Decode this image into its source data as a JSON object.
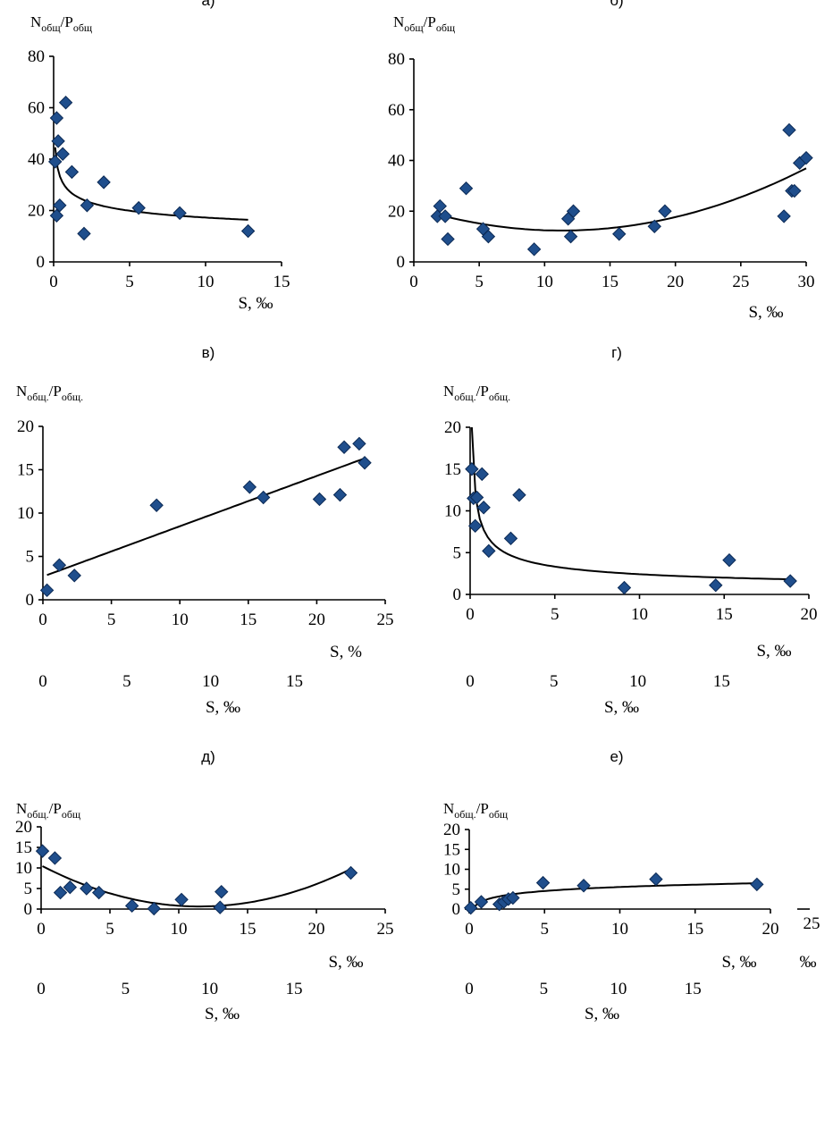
{
  "chart_data": [
    {
      "type": "scatter",
      "panel_label": "а)",
      "ylabel_main": "N",
      "ylabel_sub1": "общ",
      "ylabel_sep": "/P",
      "ylabel_sub2": "общ",
      "xlabel": "S, ‰",
      "xlim": [
        0,
        15
      ],
      "ylim": [
        0,
        80
      ],
      "xticks": [
        "0",
        "5",
        "10",
        "15"
      ],
      "yticks": [
        "0",
        "20",
        "40",
        "60",
        "80"
      ],
      "trend": "power",
      "x": [
        0.1,
        0.2,
        0.2,
        0.3,
        0.4,
        0.6,
        0.8,
        1.2,
        2.0,
        2.2,
        3.3,
        5.6,
        8.3,
        12.8
      ],
      "y": [
        39,
        18,
        56,
        47,
        22,
        42,
        62,
        35,
        11,
        22,
        31,
        21,
        19,
        12
      ]
    },
    {
      "type": "scatter",
      "panel_label": "б)",
      "ylabel_main": "N",
      "ylabel_sub1": "общ",
      "ylabel_sep": "/P",
      "ylabel_sub2": "общ",
      "xlabel": "S, ‰",
      "xlim": [
        0,
        30
      ],
      "ylim": [
        0,
        80
      ],
      "xticks": [
        "0",
        "5",
        "10",
        "15",
        "20",
        "25",
        "30"
      ],
      "yticks": [
        "0",
        "20",
        "40",
        "60",
        "80"
      ],
      "trend": "quadratic",
      "x": [
        1.8,
        2.0,
        2.4,
        2.6,
        4.0,
        5.3,
        5.7,
        9.2,
        11.8,
        12.0,
        12.2,
        15.7,
        18.4,
        19.2,
        28.3,
        28.7,
        28.9,
        29.1,
        29.5,
        30.0
      ],
      "y": [
        18,
        22,
        18,
        9,
        29,
        13,
        10,
        5,
        17,
        10,
        20,
        11,
        14,
        20,
        18,
        52,
        28,
        28,
        39,
        41
      ]
    },
    {
      "type": "scatter",
      "panel_label": "в)",
      "ylabel_main": "N",
      "ylabel_sub1": "общ.",
      "ylabel_sep": "/P",
      "ylabel_sub2": "общ.",
      "xlabel": "S, %",
      "xlim": [
        0,
        25
      ],
      "ylim": [
        0,
        20
      ],
      "xticks": [
        "0",
        "5",
        "10",
        "15",
        "20",
        "25"
      ],
      "yticks": [
        "0",
        "5",
        "10",
        "15",
        "20"
      ],
      "xlabel2": "S, ‰",
      "xticks2": [
        "0",
        "5",
        "10",
        "15"
      ],
      "trend": "linear",
      "x": [
        0.3,
        1.2,
        2.3,
        8.3,
        15.1,
        16.1,
        20.2,
        21.7,
        22.0,
        23.1,
        23.5
      ],
      "y": [
        1.1,
        4.0,
        2.8,
        10.9,
        13.0,
        11.8,
        11.6,
        12.1,
        17.6,
        18.0,
        15.8
      ]
    },
    {
      "type": "scatter",
      "panel_label": "г)",
      "ylabel_main": "N",
      "ylabel_sub1": "общ.",
      "ylabel_sep": "/P",
      "ylabel_sub2": "общ.",
      "xlabel": "S, ‰",
      "xlim": [
        0,
        20
      ],
      "ylim": [
        0,
        20
      ],
      "xticks": [
        "0",
        "5",
        "10",
        "15",
        "20"
      ],
      "yticks": [
        "0",
        "5",
        "10",
        "15",
        "20"
      ],
      "xlabel2": "S, ‰",
      "xticks2": [
        "0",
        "5",
        "10",
        "15"
      ],
      "trend": "power",
      "x": [
        0.1,
        0.2,
        0.3,
        0.4,
        0.7,
        0.8,
        1.1,
        2.4,
        2.9,
        9.1,
        14.5,
        15.3,
        18.9
      ],
      "y": [
        15.0,
        11.5,
        8.2,
        11.6,
        14.4,
        10.4,
        5.2,
        6.7,
        11.9,
        0.8,
        1.1,
        4.1,
        1.6
      ]
    },
    {
      "type": "scatter",
      "panel_label": "д)",
      "ylabel_main": "N",
      "ylabel_sub1": "общ.",
      "ylabel_sep": "/P",
      "ylabel_sub2": "общ",
      "xlabel": "S, ‰",
      "xlim": [
        0,
        25
      ],
      "ylim": [
        0,
        20
      ],
      "xticks": [
        "0",
        "5",
        "10",
        "15",
        "20",
        "25"
      ],
      "yticks": [
        "0",
        "5",
        "10",
        "15",
        "20"
      ],
      "xlabel2": "S, ‰",
      "xticks2": [
        "0",
        "5",
        "10",
        "15"
      ],
      "trend": "quadratic",
      "x": [
        0.1,
        1.0,
        1.4,
        2.1,
        3.3,
        4.2,
        6.6,
        8.2,
        10.2,
        13.0,
        13.1,
        22.5
      ],
      "y": [
        14.1,
        12.4,
        4.0,
        5.3,
        5.0,
        4.0,
        0.8,
        0.1,
        2.3,
        0.4,
        4.2,
        8.8
      ]
    },
    {
      "type": "scatter",
      "panel_label": "е)",
      "ylabel_main": "N",
      "ylabel_sub1": "общ.",
      "ylabel_sep": "/P",
      "ylabel_sub2": "общ",
      "xlabel": "S, ‰",
      "xlim": [
        0,
        20
      ],
      "ylim": [
        0,
        20
      ],
      "xticks": [
        "0",
        "5",
        "10",
        "15",
        "20"
      ],
      "yticks": [
        "0",
        "5",
        "10",
        "15",
        "20"
      ],
      "extra_tick": "25",
      "extra_label": "‰",
      "xlabel2": "S, ‰",
      "xticks2": [
        "0",
        "5",
        "10",
        "15"
      ],
      "trend": "log",
      "x": [
        0.1,
        0.8,
        2.0,
        2.3,
        2.6,
        2.9,
        4.9,
        7.6,
        12.4,
        19.1
      ],
      "y": [
        0.3,
        1.8,
        1.2,
        1.8,
        2.5,
        2.8,
        6.6,
        5.9,
        7.5,
        6.2
      ]
    }
  ]
}
